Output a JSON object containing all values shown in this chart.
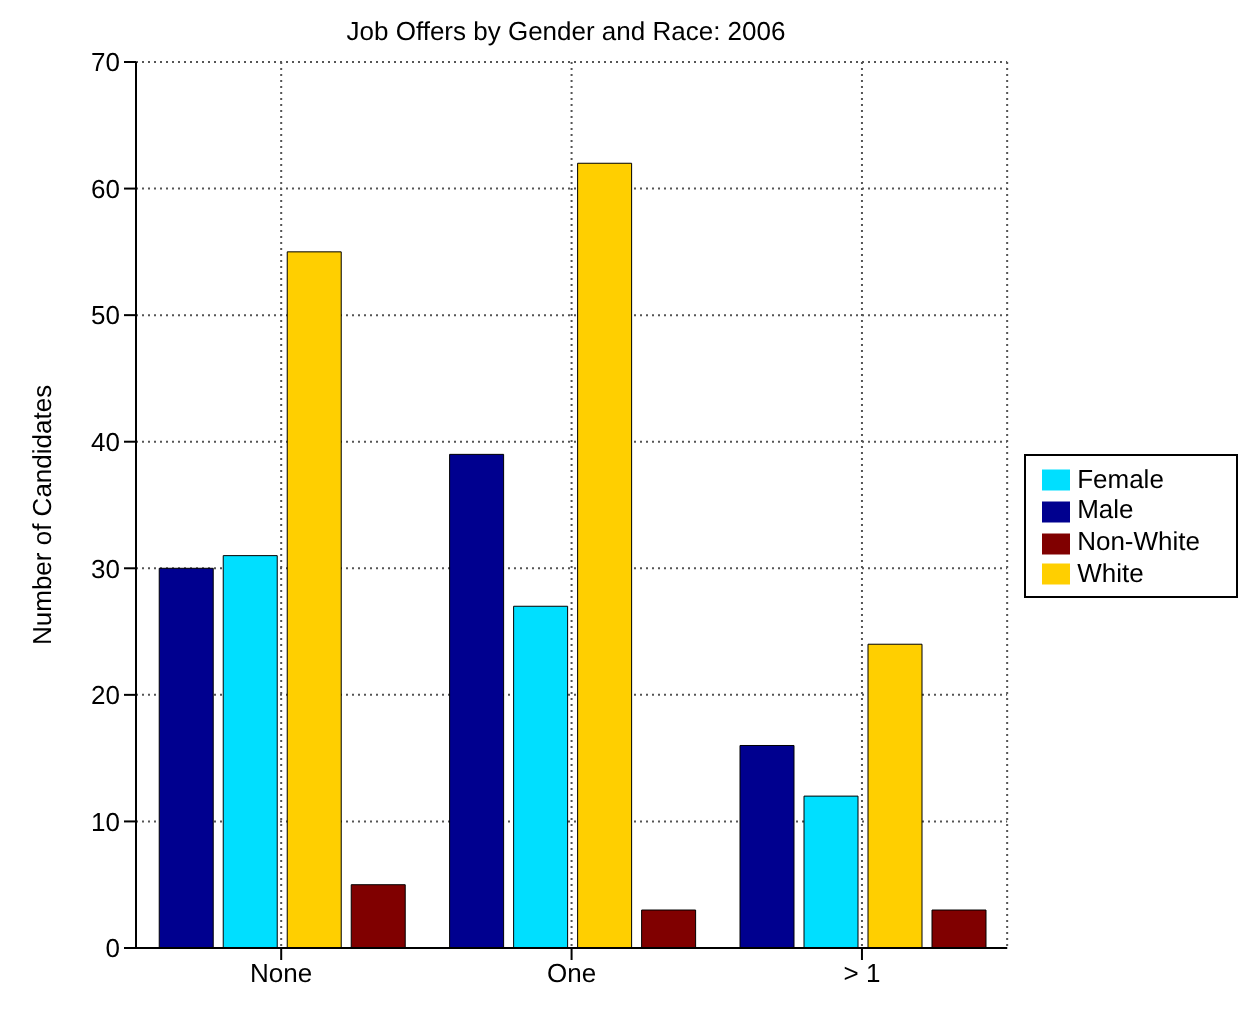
{
  "chart_data": {
    "type": "bar",
    "title": "Job Offers by Gender and Race:  2006",
    "ylabel": "Number of Candidates",
    "categories": [
      "None",
      "One",
      "> 1"
    ],
    "series": [
      {
        "name": "Male",
        "color": "#00008f",
        "values": [
          30,
          39,
          16
        ]
      },
      {
        "name": "Female",
        "color": "#00dfff",
        "values": [
          31,
          27,
          12
        ]
      },
      {
        "name": "White",
        "color": "#ffcf00",
        "values": [
          55,
          62,
          24
        ]
      },
      {
        "name": "Non-White",
        "color": "#800000",
        "values": [
          5,
          3,
          3
        ]
      }
    ],
    "ylim": [
      0,
      70
    ],
    "yticks": [
      0,
      10,
      20,
      30,
      40,
      50,
      60,
      70
    ],
    "grid": true,
    "legend": "right"
  }
}
